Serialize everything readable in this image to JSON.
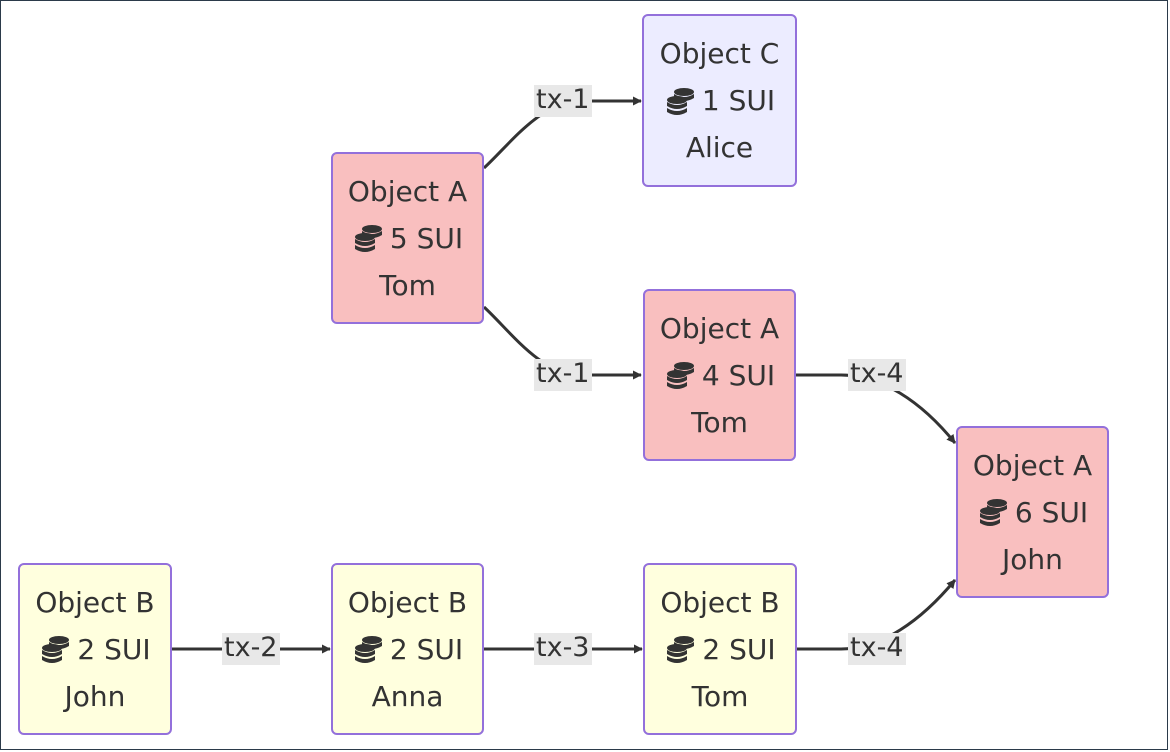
{
  "colors": {
    "pink": "#f9bfbf",
    "lavender": "#ececff",
    "yellow": "#ffffde",
    "border": "#9370db",
    "edge": "#333333",
    "label_bg": "#e8e8e8"
  },
  "coin_icon": "coins-icon",
  "nodes": [
    {
      "id": "n1",
      "name": "Object A",
      "amount": "5 SUI",
      "owner": "Tom",
      "color": "pink"
    },
    {
      "id": "n2",
      "name": "Object C",
      "amount": "1 SUI",
      "owner": "Alice",
      "color": "lavender"
    },
    {
      "id": "n3",
      "name": "Object A",
      "amount": "4 SUI",
      "owner": "Tom",
      "color": "pink"
    },
    {
      "id": "n4",
      "name": "Object A",
      "amount": "6 SUI",
      "owner": "John",
      "color": "pink"
    },
    {
      "id": "n5",
      "name": "Object B",
      "amount": "2 SUI",
      "owner": "John",
      "color": "yellow"
    },
    {
      "id": "n6",
      "name": "Object B",
      "amount": "2 SUI",
      "owner": "Anna",
      "color": "yellow"
    },
    {
      "id": "n7",
      "name": "Object B",
      "amount": "2 SUI",
      "owner": "Tom",
      "color": "yellow"
    }
  ],
  "edges": [
    {
      "from": "n1",
      "to": "n2",
      "label": "tx-1"
    },
    {
      "from": "n1",
      "to": "n3",
      "label": "tx-1"
    },
    {
      "from": "n3",
      "to": "n4",
      "label": "tx-4"
    },
    {
      "from": "n5",
      "to": "n6",
      "label": "tx-2"
    },
    {
      "from": "n6",
      "to": "n7",
      "label": "tx-3"
    },
    {
      "from": "n7",
      "to": "n4",
      "label": "tx-4"
    }
  ]
}
